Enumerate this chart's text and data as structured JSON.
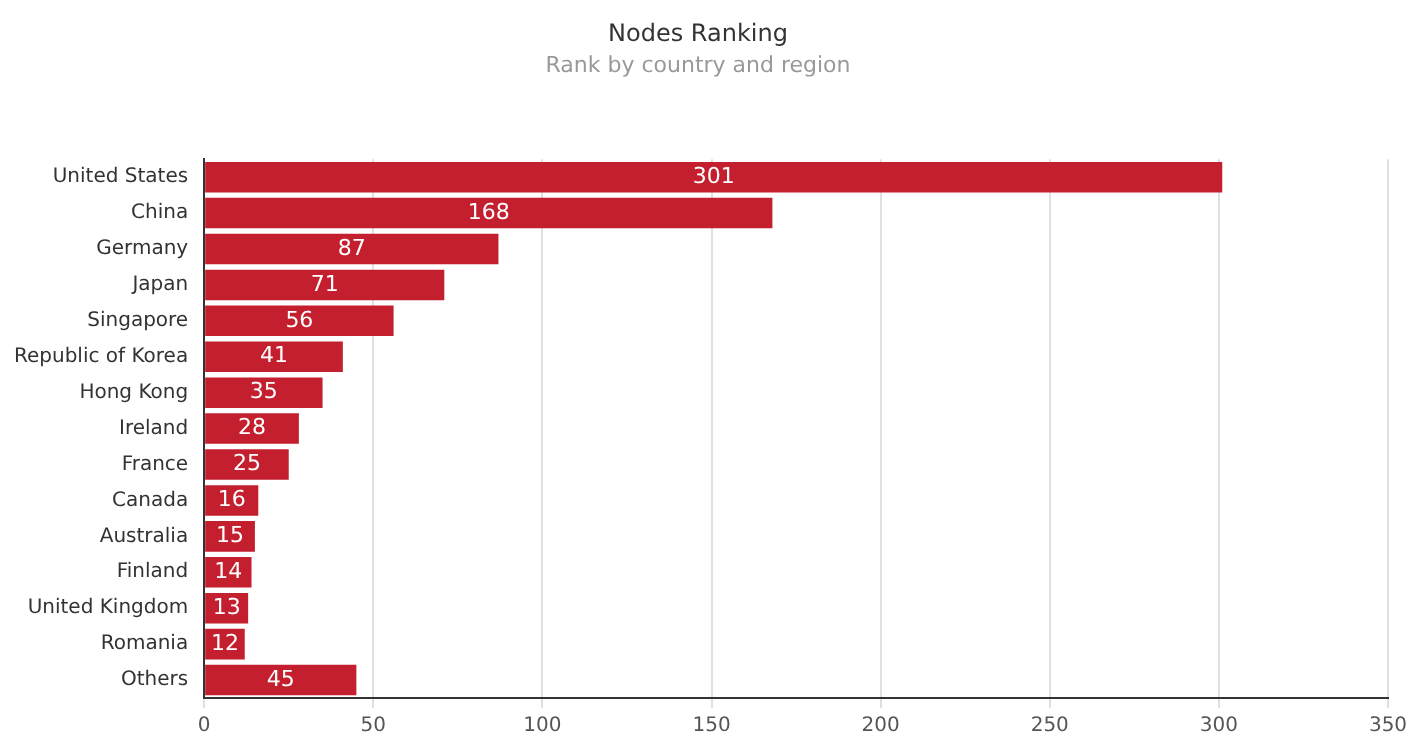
{
  "chart_data": {
    "type": "bar",
    "orientation": "horizontal",
    "title": "Nodes Ranking",
    "subtitle": "Rank by country and region",
    "categories": [
      "United States",
      "China",
      "Germany",
      "Japan",
      "Singapore",
      "Republic of Korea",
      "Hong Kong",
      "Ireland",
      "France",
      "Canada",
      "Australia",
      "Finland",
      "United Kingdom",
      "Romania",
      "Others"
    ],
    "values": [
      301,
      168,
      87,
      71,
      56,
      41,
      35,
      28,
      25,
      16,
      15,
      14,
      13,
      12,
      45
    ],
    "color": "#c41f2f",
    "xlim": [
      0,
      350
    ],
    "xticks": [
      0,
      50,
      100,
      150,
      200,
      250,
      300,
      350
    ],
    "grid": "x",
    "data_labels": true
  }
}
